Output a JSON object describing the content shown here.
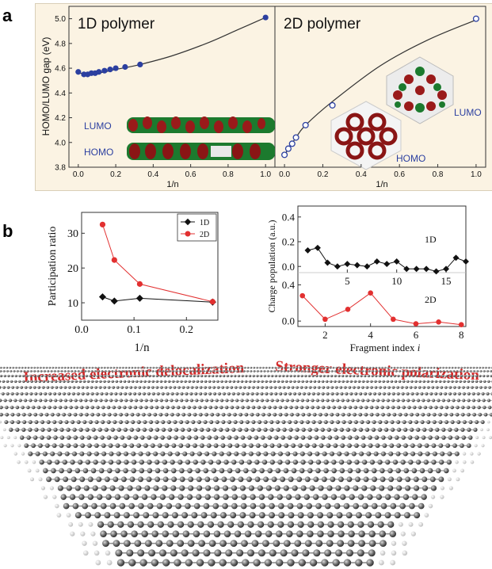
{
  "labels": {
    "panel_a": "a",
    "panel_b": "b",
    "title_1d": "1D polymer",
    "title_2d": "2D polymer",
    "ylabel_a": "HOMO/LUMO gap (eV)",
    "xlabel_a": "1/n",
    "lumo": "LUMO",
    "homo": "HOMO",
    "ylabel_pr": "Participation ratio",
    "xlabel_pr": "1/n",
    "legend_1d": "1D",
    "legend_2d": "2D",
    "ylabel_cp": "Charge population (a.u.)",
    "xlabel_cp": "Fragment index ",
    "xlabel_cp_italic": "i",
    "cp_label_1d": "1D",
    "cp_label_2d": "2D",
    "banner_left": "Increased electronic delocalization",
    "banner_right": "Stronger electronic polarization"
  },
  "colors": {
    "blue": "#2b3fa0",
    "red": "#e23030",
    "black": "#111111",
    "frame_bg": "#fbf3e3",
    "banner": "#d42a2a"
  },
  "chart_data": [
    {
      "id": "a-1d",
      "type": "scatter",
      "title": "1D polymer",
      "xlabel": "1/n",
      "ylabel": "HOMO/LUMO gap (eV)",
      "xlim": [
        -0.05,
        1.05
      ],
      "ylim": [
        3.8,
        5.1
      ],
      "xticks": [
        "0.0",
        "0.2",
        "0.4",
        "0.6",
        "0.8",
        "1.0"
      ],
      "yticks": [
        "3.8",
        "4.0",
        "4.2",
        "4.4",
        "4.6",
        "4.8",
        "5.0"
      ],
      "marker": "filled",
      "points": [
        [
          0.0,
          4.57
        ],
        [
          0.03,
          4.55
        ],
        [
          0.05,
          4.55
        ],
        [
          0.07,
          4.56
        ],
        [
          0.09,
          4.56
        ],
        [
          0.11,
          4.57
        ],
        [
          0.14,
          4.58
        ],
        [
          0.17,
          4.59
        ],
        [
          0.2,
          4.6
        ],
        [
          0.25,
          4.61
        ],
        [
          0.33,
          4.63
        ],
        [
          1.0,
          5.01
        ]
      ],
      "fit": [
        [
          0.0,
          4.56
        ],
        [
          0.1,
          4.56
        ],
        [
          0.2,
          4.59
        ],
        [
          0.33,
          4.63
        ],
        [
          0.5,
          4.7
        ],
        [
          0.7,
          4.81
        ],
        [
          0.85,
          4.91
        ],
        [
          1.0,
          5.01
        ]
      ]
    },
    {
      "id": "a-2d",
      "type": "scatter",
      "title": "2D polymer",
      "xlabel": "1/n",
      "xlim": [
        -0.05,
        1.05
      ],
      "ylim": [
        3.8,
        5.1
      ],
      "xticks": [
        "0.0",
        "0.2",
        "0.4",
        "0.6",
        "0.8",
        "1.0"
      ],
      "marker": "open",
      "points": [
        [
          0.0,
          3.9
        ],
        [
          0.02,
          3.95
        ],
        [
          0.04,
          3.99
        ],
        [
          0.06,
          4.04
        ],
        [
          0.11,
          4.14
        ],
        [
          0.25,
          4.3
        ],
        [
          1.0,
          5.0
        ]
      ],
      "fit": [
        [
          0.0,
          3.9
        ],
        [
          0.06,
          4.04
        ],
        [
          0.11,
          4.14
        ],
        [
          0.25,
          4.33
        ],
        [
          0.5,
          4.62
        ],
        [
          0.75,
          4.83
        ],
        [
          1.0,
          4.99
        ]
      ]
    },
    {
      "id": "b-pr",
      "type": "line",
      "xlabel": "1/n",
      "ylabel": "Participation ratio",
      "xlim": [
        0.0,
        0.26
      ],
      "ylim": [
        5,
        36
      ],
      "xticks": [
        "0.0",
        "0.1",
        "0.2"
      ],
      "yticks": [
        "10",
        "20",
        "30"
      ],
      "series": [
        {
          "name": "1D",
          "points": [
            [
              0.04,
              11.7
            ],
            [
              0.0625,
              10.5
            ],
            [
              0.111,
              11.3
            ],
            [
              0.25,
              10.2
            ]
          ]
        },
        {
          "name": "2D",
          "points": [
            [
              0.04,
              32.5
            ],
            [
              0.0625,
              22.3
            ],
            [
              0.111,
              15.4
            ],
            [
              0.25,
              10.3
            ]
          ]
        }
      ]
    },
    {
      "id": "b-cp-1d",
      "type": "line",
      "ylabel": "Charge population (a.u.)",
      "xlim": [
        0,
        17
      ],
      "ylim": [
        -0.05,
        0.45
      ],
      "xticks": [
        "5",
        "10",
        "15"
      ],
      "yticks": [
        "0.0",
        "0.2",
        "0.4"
      ],
      "series": [
        {
          "name": "1D",
          "points": [
            [
              1,
              0.13
            ],
            [
              2,
              0.15
            ],
            [
              3,
              0.03
            ],
            [
              4,
              0.0
            ],
            [
              5,
              0.02
            ],
            [
              6,
              0.01
            ],
            [
              7,
              0.0
            ],
            [
              8,
              0.04
            ],
            [
              9,
              0.02
            ],
            [
              10,
              0.04
            ],
            [
              11,
              -0.02
            ],
            [
              12,
              -0.02
            ],
            [
              13,
              -0.02
            ],
            [
              14,
              -0.04
            ],
            [
              15,
              -0.02
            ],
            [
              16,
              0.07
            ],
            [
              17,
              0.04
            ]
          ]
        }
      ]
    },
    {
      "id": "b-cp-2d",
      "type": "line",
      "xlabel": "Fragment index i",
      "xlim": [
        0.8,
        8.2
      ],
      "ylim": [
        -0.06,
        0.5
      ],
      "xticks": [
        "2",
        "4",
        "6",
        "8"
      ],
      "yticks": [
        "0.0",
        "0.4"
      ],
      "series": [
        {
          "name": "2D",
          "points": [
            [
              1,
              0.28
            ],
            [
              2,
              0.02
            ],
            [
              3,
              0.13
            ],
            [
              4,
              0.31
            ],
            [
              5,
              0.02
            ],
            [
              6,
              -0.03
            ],
            [
              7,
              -0.01
            ],
            [
              8,
              -0.04
            ]
          ]
        }
      ]
    }
  ]
}
